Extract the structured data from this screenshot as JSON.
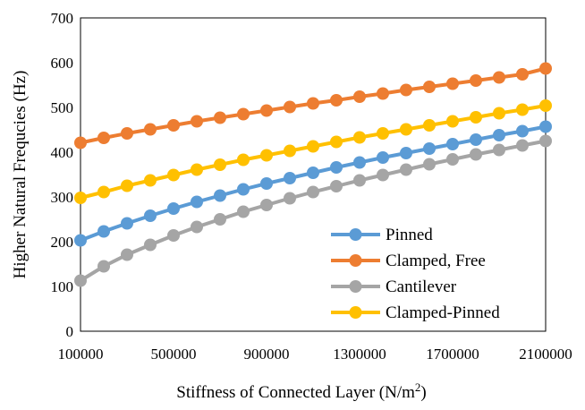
{
  "chart_data": {
    "type": "line",
    "title": "",
    "xlabel": "Stiffness of Connected Layer (N/m",
    "xlabel_superscript": "2",
    "xlabel_suffix": ")",
    "ylabel": "Higher Natural Frequcies (Hz)",
    "xlim": [
      100000,
      2100000
    ],
    "ylim": [
      0,
      700
    ],
    "x_ticks": [
      100000,
      500000,
      900000,
      1300000,
      1700000,
      2100000
    ],
    "x_tick_labels": [
      "100000",
      "500000",
      "900000",
      "1300000",
      "1700000",
      "2100000"
    ],
    "y_ticks": [
      0,
      100,
      200,
      300,
      400,
      500,
      600,
      700
    ],
    "y_tick_labels": [
      "0",
      "100",
      "200",
      "300",
      "400",
      "500",
      "600",
      "700"
    ],
    "grid": false,
    "legend_position": "bottom-right",
    "x": [
      100000,
      200000,
      300000,
      400000,
      500000,
      600000,
      700000,
      800000,
      900000,
      1000000,
      1100000,
      1200000,
      1300000,
      1400000,
      1500000,
      1600000,
      1700000,
      1800000,
      1900000,
      2000000,
      2100000
    ],
    "series": [
      {
        "name": "Pinned",
        "color": "#5B9BD5",
        "values": [
          203,
          223,
          241,
          258,
          274,
          289,
          303,
          317,
          330,
          342,
          354,
          366,
          377,
          388,
          398,
          408,
          418,
          428,
          438,
          447,
          457
        ]
      },
      {
        "name": "Clamped, Free",
        "color": "#ED7D31",
        "values": [
          421,
          432,
          442,
          451,
          460,
          469,
          477,
          485,
          493,
          501,
          509,
          516,
          524,
          531,
          539,
          546,
          553,
          560,
          567,
          574,
          587
        ]
      },
      {
        "name": "Cantilever",
        "color": "#A5A5A5",
        "values": [
          113,
          145,
          171,
          193,
          214,
          233,
          250,
          267,
          282,
          297,
          311,
          324,
          337,
          349,
          361,
          373,
          384,
          395,
          405,
          415,
          425
        ]
      },
      {
        "name": "Clamped-Pinned",
        "color": "#FFC000",
        "values": [
          298,
          311,
          325,
          337,
          349,
          361,
          372,
          383,
          393,
          403,
          413,
          423,
          433,
          442,
          451,
          460,
          469,
          478,
          487,
          495,
          504
        ]
      }
    ]
  }
}
